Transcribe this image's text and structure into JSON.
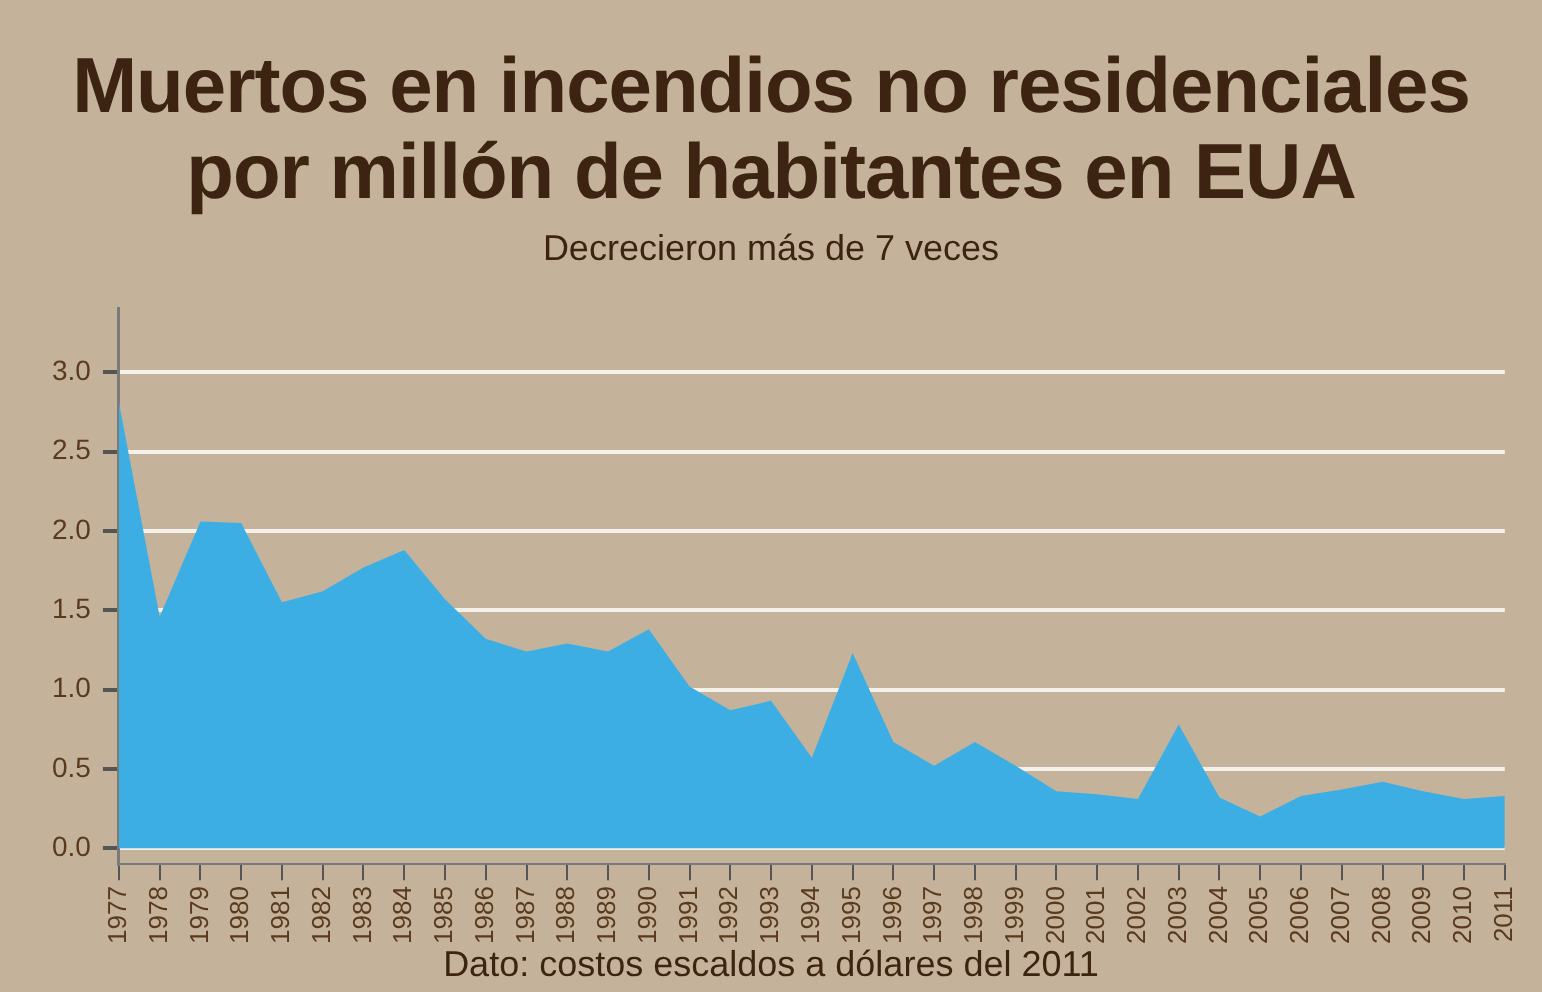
{
  "chart_data": {
    "type": "area",
    "title": "Muertos en incendios no residenciales\npor millón de habitantes en EUA",
    "subtitle": "Decrecieron más de 7 veces",
    "annotations": [
      "Dato: costos escaldos a dólares del 2011"
    ],
    "categories": [
      "1977",
      "1978",
      "1979",
      "1980",
      "1981",
      "1982",
      "1983",
      "1984",
      "1985",
      "1986",
      "1987",
      "1988",
      "1989",
      "1990",
      "1991",
      "1992",
      "1993",
      "1994",
      "1995",
      "1996",
      "1997",
      "1998",
      "1999",
      "2000",
      "2001",
      "2002",
      "2003",
      "2004",
      "2005",
      "2006",
      "2007",
      "2008",
      "2009",
      "2010",
      "2011"
    ],
    "series": [
      {
        "color": "#3daee3",
        "values": [
          2.81,
          1.46,
          2.06,
          2.05,
          1.55,
          1.62,
          1.77,
          1.88,
          1.57,
          1.32,
          1.24,
          1.29,
          1.24,
          1.38,
          1.02,
          0.87,
          0.93,
          0.57,
          1.23,
          0.67,
          0.52,
          0.67,
          0.52,
          0.36,
          0.34,
          0.31,
          0.78,
          0.32,
          0.2,
          0.33,
          0.37,
          0.42,
          0.36,
          0.31,
          0.33
        ]
      }
    ],
    "ylim": [
      -0.1,
      3.4
    ],
    "yticks": [
      {
        "value": 0,
        "label": "0.0"
      },
      {
        "value": 0.5,
        "label": "0.5"
      },
      {
        "value": 1,
        "label": "1.0"
      },
      {
        "value": 1.5,
        "label": "1.5"
      },
      {
        "value": 2,
        "label": "2.0"
      },
      {
        "value": 2.5,
        "label": "2.5"
      },
      {
        "value": 3,
        "label": "3.0"
      }
    ],
    "grid": "y",
    "legend": false
  }
}
